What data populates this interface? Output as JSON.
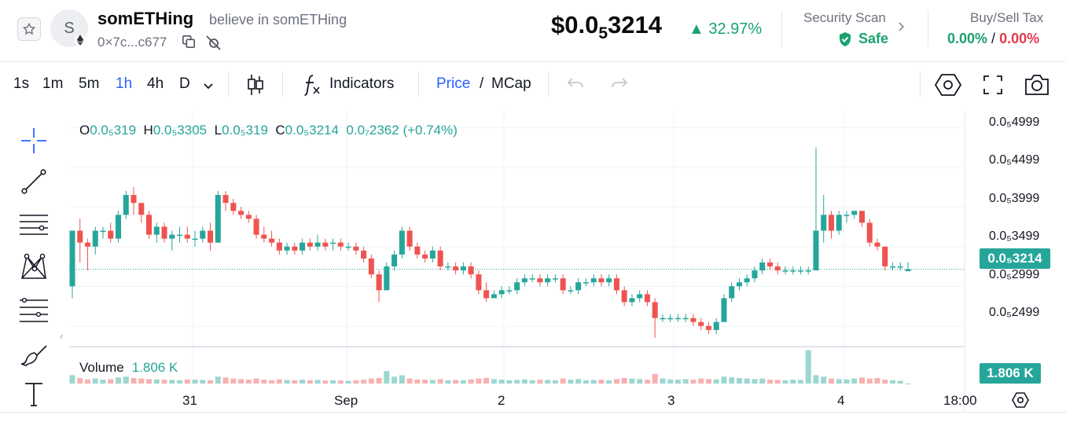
{
  "header": {
    "avatar_letter": "S",
    "token_name": "somETHing",
    "token_desc": "believe in somETHing",
    "token_address": "0×7c...c677",
    "price_prefix": "$0.0",
    "price_sub": "5",
    "price_suffix": "3214",
    "price_change": "▲ 32.97%",
    "security_title": "Security Scan",
    "security_status": "Safe",
    "tax_title": "Buy/Sell Tax",
    "buy_tax": "0.00%",
    "tax_sep": " / ",
    "sell_tax": "0.00%",
    "colors": {
      "up": "#1aa36f",
      "down": "#e0394e"
    }
  },
  "toolbar": {
    "intervals": [
      "1s",
      "1m",
      "5m",
      "1h",
      "4h",
      "D"
    ],
    "active_interval": "1h",
    "indicators_label": "Indicators",
    "price_label": "Price",
    "slash": "/",
    "mcap_label": "MCap"
  },
  "legend": {
    "o_label": "O",
    "o_val": "0.0₅319",
    "h_label": "H",
    "h_val": "0.0₅3305",
    "l_label": "L",
    "l_val": "0.0₅319",
    "c_label": "C",
    "c_val": "0.0₅3214",
    "change": "0.0₇2362 (+0.74%)",
    "volume_label": "Volume",
    "volume_val": "1.806 K"
  },
  "price_axis": {
    "ticks": [
      "0.0₅4999",
      "0.0₅4499",
      "0.0₅3999",
      "0.0₅3499",
      "0.0₅2999",
      "0.0₅2499"
    ],
    "current_price_label": "0.0₅3214",
    "current_volume_label": "1.806 K"
  },
  "time_axis": {
    "ticks": [
      "31",
      "Sep",
      "2",
      "3",
      "4",
      "18:00"
    ]
  },
  "chart_data": {
    "type": "candlestick",
    "y_ticks": [
      4.999e-05,
      4.499e-05,
      3.999e-05,
      3.499e-05,
      2.999e-05,
      2.499e-05
    ],
    "ylim": [
      2.25e-05,
      5.2e-05
    ],
    "up_color": "#26a69a",
    "down_color": "#ef5350",
    "candles_ohlc_e5": [
      [
        3.0,
        3.7,
        2.85,
        3.7
      ],
      [
        3.7,
        3.85,
        3.3,
        3.55
      ],
      [
        3.55,
        3.6,
        3.2,
        3.5
      ],
      [
        3.5,
        3.75,
        3.4,
        3.7
      ],
      [
        3.7,
        3.75,
        3.6,
        3.7
      ],
      [
        3.7,
        3.8,
        3.55,
        3.6
      ],
      [
        3.6,
        3.95,
        3.55,
        3.9
      ],
      [
        3.9,
        4.2,
        3.85,
        4.15
      ],
      [
        4.15,
        4.25,
        3.9,
        4.05
      ],
      [
        4.05,
        4.0,
        3.8,
        3.9
      ],
      [
        3.9,
        3.95,
        3.6,
        3.65
      ],
      [
        3.65,
        3.8,
        3.55,
        3.75
      ],
      [
        3.75,
        3.8,
        3.55,
        3.6
      ],
      [
        3.6,
        3.7,
        3.45,
        3.65
      ],
      [
        3.65,
        3.75,
        3.55,
        3.65
      ],
      [
        3.65,
        3.75,
        3.55,
        3.6
      ],
      [
        3.6,
        3.7,
        3.5,
        3.6
      ],
      [
        3.6,
        3.75,
        3.55,
        3.7
      ],
      [
        3.7,
        3.8,
        3.45,
        3.55
      ],
      [
        3.55,
        4.2,
        3.55,
        4.15
      ],
      [
        4.15,
        4.2,
        3.95,
        4.05
      ],
      [
        4.05,
        4.1,
        3.9,
        3.95
      ],
      [
        3.95,
        4.0,
        3.85,
        3.9
      ],
      [
        3.9,
        3.95,
        3.8,
        3.85
      ],
      [
        3.85,
        3.9,
        3.6,
        3.65
      ],
      [
        3.65,
        3.75,
        3.55,
        3.6
      ],
      [
        3.6,
        3.7,
        3.5,
        3.55
      ],
      [
        3.55,
        3.6,
        3.4,
        3.45
      ],
      [
        3.45,
        3.55,
        3.4,
        3.5
      ],
      [
        3.5,
        3.55,
        3.4,
        3.45
      ],
      [
        3.45,
        3.6,
        3.4,
        3.55
      ],
      [
        3.55,
        3.6,
        3.45,
        3.5
      ],
      [
        3.5,
        3.65,
        3.45,
        3.55
      ],
      [
        3.55,
        3.6,
        3.45,
        3.5
      ],
      [
        3.55,
        3.6,
        3.45,
        3.55
      ],
      [
        3.55,
        3.6,
        3.45,
        3.5
      ],
      [
        3.5,
        3.55,
        3.45,
        3.5
      ],
      [
        3.5,
        3.55,
        3.4,
        3.45
      ],
      [
        3.45,
        3.5,
        3.3,
        3.35
      ],
      [
        3.35,
        3.4,
        3.1,
        3.15
      ],
      [
        3.15,
        3.2,
        2.8,
        2.95
      ],
      [
        2.95,
        3.3,
        2.95,
        3.25
      ],
      [
        3.25,
        3.45,
        3.2,
        3.4
      ],
      [
        3.4,
        3.75,
        3.35,
        3.7
      ],
      [
        3.7,
        3.75,
        3.45,
        3.5
      ],
      [
        3.5,
        3.55,
        3.35,
        3.4
      ],
      [
        3.4,
        3.45,
        3.3,
        3.35
      ],
      [
        3.35,
        3.5,
        3.3,
        3.45
      ],
      [
        3.45,
        3.5,
        3.2,
        3.25
      ],
      [
        3.25,
        3.3,
        3.2,
        3.25
      ],
      [
        3.25,
        3.3,
        3.15,
        3.2
      ],
      [
        3.2,
        3.3,
        3.15,
        3.25
      ],
      [
        3.25,
        3.3,
        3.1,
        3.15
      ],
      [
        3.15,
        3.2,
        2.9,
        2.95
      ],
      [
        2.95,
        3.05,
        2.8,
        2.85
      ],
      [
        2.85,
        2.95,
        2.85,
        2.9
      ],
      [
        2.9,
        3.0,
        2.85,
        2.95
      ],
      [
        2.95,
        3.0,
        2.9,
        2.95
      ],
      [
        2.95,
        3.1,
        2.9,
        3.05
      ],
      [
        3.05,
        3.15,
        3.0,
        3.1
      ],
      [
        3.1,
        3.15,
        3.05,
        3.1
      ],
      [
        3.1,
        3.15,
        3.0,
        3.05
      ],
      [
        3.05,
        3.15,
        3.0,
        3.1
      ],
      [
        3.1,
        3.15,
        3.05,
        3.1
      ],
      [
        3.1,
        3.15,
        2.9,
        2.95
      ],
      [
        2.95,
        3.0,
        2.9,
        2.95
      ],
      [
        2.95,
        3.1,
        2.9,
        3.05
      ],
      [
        3.05,
        3.1,
        3.0,
        3.05
      ],
      [
        3.05,
        3.15,
        3.0,
        3.1
      ],
      [
        3.1,
        3.15,
        3.0,
        3.05
      ],
      [
        3.05,
        3.15,
        3.0,
        3.1
      ],
      [
        3.1,
        3.15,
        2.9,
        2.95
      ],
      [
        2.95,
        3.0,
        2.75,
        2.8
      ],
      [
        2.8,
        2.9,
        2.75,
        2.85
      ],
      [
        2.85,
        2.95,
        2.8,
        2.9
      ],
      [
        2.9,
        2.95,
        2.75,
        2.8
      ],
      [
        2.8,
        2.85,
        2.35,
        2.6
      ],
      [
        2.6,
        2.65,
        2.55,
        2.6
      ],
      [
        2.6,
        2.65,
        2.55,
        2.6
      ],
      [
        2.6,
        2.65,
        2.55,
        2.6
      ],
      [
        2.6,
        2.65,
        2.55,
        2.6
      ],
      [
        2.6,
        2.65,
        2.5,
        2.55
      ],
      [
        2.55,
        2.6,
        2.45,
        2.5
      ],
      [
        2.5,
        2.55,
        2.4,
        2.45
      ],
      [
        2.45,
        2.6,
        2.4,
        2.55
      ],
      [
        2.55,
        2.9,
        2.55,
        2.85
      ],
      [
        2.85,
        3.05,
        2.8,
        3.0
      ],
      [
        3.0,
        3.1,
        2.95,
        3.05
      ],
      [
        3.05,
        3.15,
        3.0,
        3.1
      ],
      [
        3.1,
        3.25,
        3.05,
        3.2
      ],
      [
        3.2,
        3.35,
        3.15,
        3.3
      ],
      [
        3.3,
        3.35,
        3.2,
        3.25
      ],
      [
        3.25,
        3.3,
        3.15,
        3.2
      ],
      [
        3.2,
        3.25,
        3.15,
        3.2
      ],
      [
        3.2,
        3.25,
        3.15,
        3.2
      ],
      [
        3.2,
        3.25,
        3.15,
        3.2
      ],
      [
        3.2,
        3.25,
        3.15,
        3.2
      ],
      [
        3.2,
        4.75,
        3.2,
        3.7
      ],
      [
        3.7,
        4.15,
        3.55,
        3.9
      ],
      [
        3.9,
        3.95,
        3.6,
        3.7
      ],
      [
        3.7,
        3.95,
        3.65,
        3.9
      ],
      [
        3.9,
        3.95,
        3.8,
        3.9
      ],
      [
        3.9,
        3.95,
        3.85,
        3.95
      ],
      [
        3.95,
        3.95,
        3.75,
        3.8
      ],
      [
        3.8,
        3.85,
        3.5,
        3.55
      ],
      [
        3.55,
        3.6,
        3.45,
        3.5
      ],
      [
        3.5,
        3.5,
        3.2,
        3.25
      ],
      [
        3.25,
        3.3,
        3.2,
        3.25
      ],
      [
        3.25,
        3.3,
        3.2,
        3.25
      ],
      [
        3.19,
        3.305,
        3.19,
        3.214
      ]
    ],
    "volumes": [
      30,
      20,
      15,
      18,
      14,
      16,
      22,
      25,
      20,
      18,
      16,
      15,
      14,
      13,
      12,
      15,
      14,
      13,
      12,
      25,
      22,
      18,
      16,
      14,
      18,
      14,
      12,
      15,
      13,
      12,
      14,
      12,
      13,
      11,
      12,
      11,
      10,
      12,
      14,
      18,
      20,
      45,
      25,
      30,
      18,
      15,
      14,
      13,
      16,
      12,
      13,
      12,
      15,
      18,
      20,
      16,
      14,
      12,
      13,
      15,
      12,
      14,
      13,
      12,
      18,
      14,
      16,
      12,
      13,
      14,
      12,
      16,
      20,
      18,
      16,
      14,
      35,
      18,
      15,
      14,
      16,
      14,
      18,
      16,
      15,
      25,
      22,
      20,
      18,
      16,
      18,
      14,
      13,
      12,
      14,
      13,
      120,
      30,
      25,
      18,
      16,
      15,
      18,
      22,
      18,
      20,
      14,
      12,
      10
    ],
    "volume_ylim": [
      0,
      130
    ],
    "x_ticks": [
      "31",
      "Sep",
      "2",
      "3",
      "4",
      "18:00"
    ]
  }
}
